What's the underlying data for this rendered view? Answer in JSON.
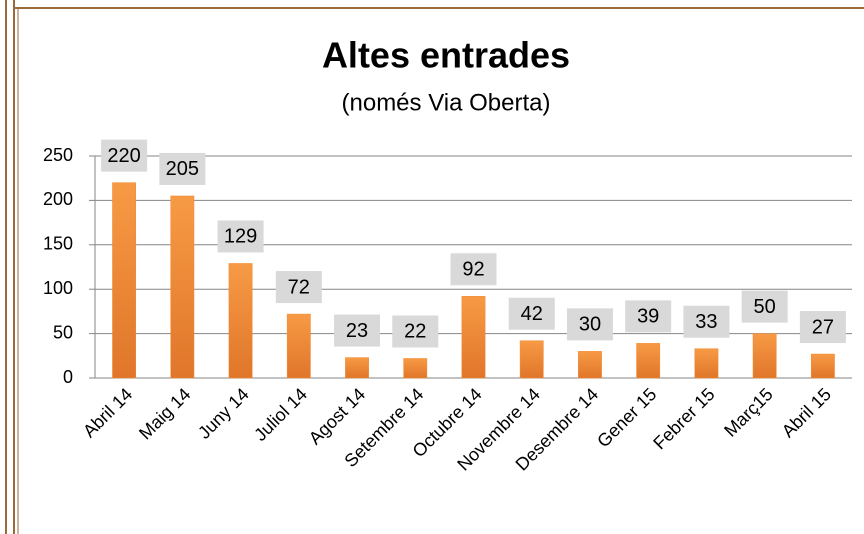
{
  "chart_data": {
    "type": "bar",
    "title": "Altes entrades",
    "subtitle": "(només Via Oberta)",
    "categories": [
      "Abril 14",
      "Maig 14",
      "Juny 14",
      "Juliol 14",
      "Agost 14",
      "Setembre 14",
      "Octubre 14",
      "Novembre 14",
      "Desembre 14",
      "Gener 15",
      "Febrer 15",
      "Març15",
      "Abril 15"
    ],
    "values": [
      220,
      205,
      129,
      72,
      23,
      22,
      92,
      42,
      30,
      39,
      33,
      50,
      27
    ],
    "color": "#f28a30",
    "ylim": [
      0,
      250
    ],
    "yticks": [
      0,
      50,
      100,
      150,
      200,
      250
    ],
    "grid": true
  }
}
